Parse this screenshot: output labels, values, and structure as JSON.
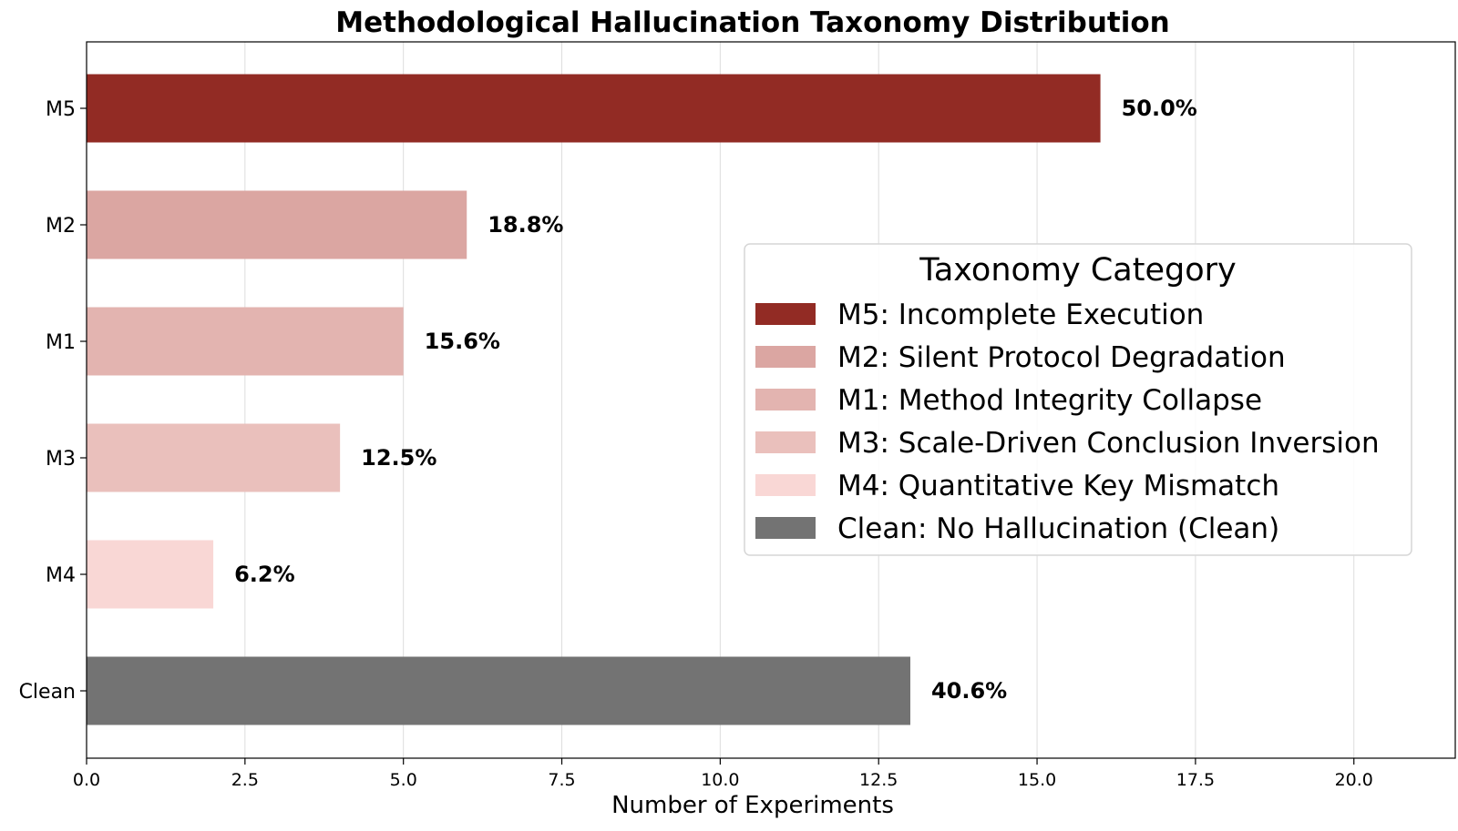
{
  "chart_data": {
    "type": "bar",
    "orientation": "horizontal",
    "title": "Methodological Hallucination Taxonomy Distribution",
    "xlabel": "Number of Experiments",
    "ylabel": "",
    "xlim": [
      0,
      21.6
    ],
    "x_ticks": [
      0,
      2.5,
      5,
      7.5,
      10,
      12.5,
      15,
      17.5,
      20
    ],
    "x_tick_labels": [
      "0.0",
      "2.5",
      "5.0",
      "7.5",
      "10.0",
      "12.5",
      "15.0",
      "17.5",
      "20.0"
    ],
    "grid": "x",
    "categories": [
      "M5",
      "M2",
      "M1",
      "M3",
      "M4",
      "Clean"
    ],
    "values": [
      16,
      6,
      5,
      4,
      2,
      13
    ],
    "data_labels": [
      "50.0%",
      "18.8%",
      "15.6%",
      "12.5%",
      "6.2%",
      "40.6%"
    ],
    "colors": [
      "#922b24",
      "#dba6a2",
      "#e3b4b0",
      "#eac0bc",
      "#f9d7d5",
      "#737373"
    ],
    "legend": {
      "title": "Taxonomy Category",
      "placement": "center-right",
      "entries": [
        {
          "label": "M5: Incomplete Execution",
          "color": "#922b24"
        },
        {
          "label": "M2: Silent Protocol Degradation",
          "color": "#dba6a2"
        },
        {
          "label": "M1: Method Integrity Collapse",
          "color": "#e3b4b0"
        },
        {
          "label": "M3: Scale-Driven Conclusion Inversion",
          "color": "#eac0bc"
        },
        {
          "label": "M4: Quantitative Key Mismatch",
          "color": "#f9d7d5"
        },
        {
          "label": "Clean: No Hallucination (Clean)",
          "color": "#737373"
        }
      ]
    }
  }
}
